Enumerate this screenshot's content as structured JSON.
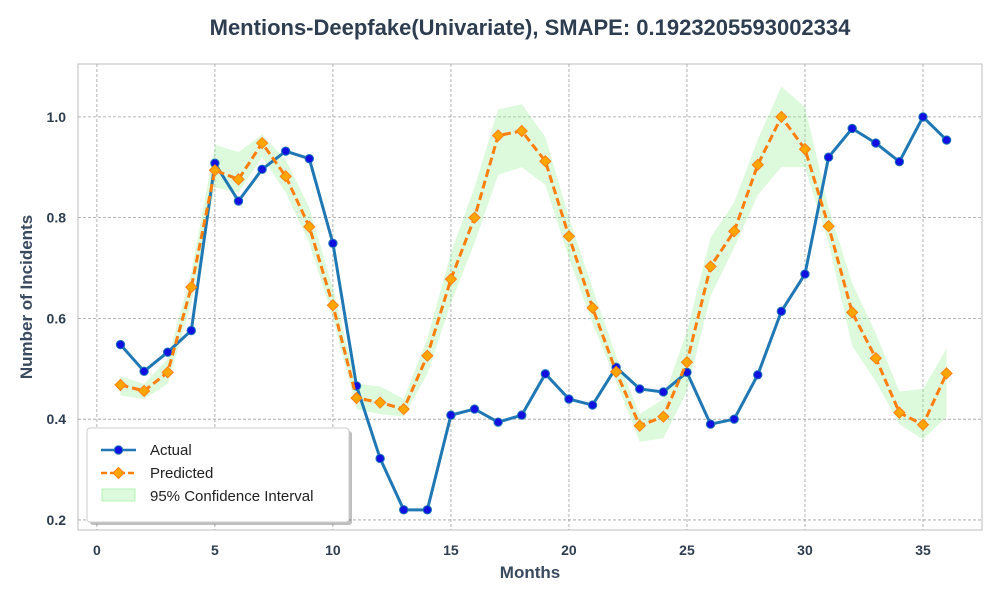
{
  "chart_data": {
    "type": "line",
    "title": "Mentions-Deepfake(Univariate), SMAPE: 0.1923205593002334",
    "xlabel": "Months",
    "ylabel": "Number of Incidents",
    "xlim": [
      -0.8,
      37.5
    ],
    "ylim": [
      0.18,
      1.105
    ],
    "xticks": [
      0,
      5,
      10,
      15,
      20,
      25,
      30,
      35
    ],
    "yticks": [
      0.2,
      0.4,
      0.6,
      0.8,
      1.0
    ],
    "xtick_labels": [
      "0",
      "5",
      "10",
      "15",
      "20",
      "25",
      "30",
      "35"
    ],
    "ytick_labels": [
      "0.2",
      "0.4",
      "0.6",
      "0.8",
      "1.0"
    ],
    "grid": true,
    "legend_position": "lower-left",
    "x": [
      1,
      2,
      3,
      4,
      5,
      6,
      7,
      8,
      9,
      10,
      11,
      12,
      13,
      14,
      15,
      16,
      17,
      18,
      19,
      20,
      21,
      22,
      23,
      24,
      25,
      26,
      27,
      28,
      29,
      30,
      31,
      32,
      33,
      34,
      35,
      36
    ],
    "series": [
      {
        "name": "Actual",
        "style": "solid-line-circle-markers",
        "color": "#1f77b4",
        "marker_color": "#1010e0",
        "values": [
          0.548,
          0.495,
          0.533,
          0.576,
          0.908,
          0.833,
          0.896,
          0.932,
          0.917,
          0.749,
          0.466,
          0.322,
          0.22,
          0.22,
          0.408,
          0.42,
          0.394,
          0.408,
          0.49,
          0.44,
          0.428,
          0.503,
          0.46,
          0.454,
          0.493,
          0.39,
          0.4,
          0.488,
          0.614,
          0.688,
          0.92,
          0.977,
          0.948,
          0.911,
          1.0,
          0.954
        ]
      },
      {
        "name": "Predicted",
        "style": "dashed-line-diamond-markers",
        "color": "#ff7f0e",
        "marker_color": "#ffa500",
        "values": [
          0.468,
          0.456,
          0.493,
          0.662,
          0.894,
          0.876,
          0.948,
          0.882,
          0.782,
          0.626,
          0.442,
          0.433,
          0.42,
          0.526,
          0.678,
          0.8,
          0.963,
          0.972,
          0.912,
          0.763,
          0.621,
          0.494,
          0.387,
          0.405,
          0.513,
          0.703,
          0.773,
          0.905,
          1.0,
          0.936,
          0.783,
          0.612,
          0.521,
          0.413,
          0.389,
          0.491
        ]
      }
    ],
    "confidence_interval": {
      "name": "95% Confidence Interval",
      "fill_color": "#90ee90",
      "lower": [
        0.447,
        0.44,
        0.47,
        0.63,
        0.86,
        0.85,
        0.92,
        0.85,
        0.75,
        0.6,
        0.42,
        0.41,
        0.405,
        0.49,
        0.63,
        0.75,
        0.885,
        0.9,
        0.865,
        0.72,
        0.59,
        0.475,
        0.355,
        0.362,
        0.455,
        0.645,
        0.74,
        0.845,
        0.9,
        0.9,
        0.75,
        0.545,
        0.475,
        0.39,
        0.36,
        0.405
      ],
      "upper": [
        0.485,
        0.47,
        0.52,
        0.69,
        0.945,
        0.93,
        0.965,
        0.915,
        0.82,
        0.66,
        0.47,
        0.465,
        0.44,
        0.56,
        0.73,
        0.86,
        1.015,
        1.025,
        0.96,
        0.8,
        0.66,
        0.525,
        0.41,
        0.44,
        0.575,
        0.76,
        0.83,
        0.955,
        1.06,
        1.02,
        0.82,
        0.67,
        0.57,
        0.455,
        0.46,
        0.54
      ]
    }
  }
}
